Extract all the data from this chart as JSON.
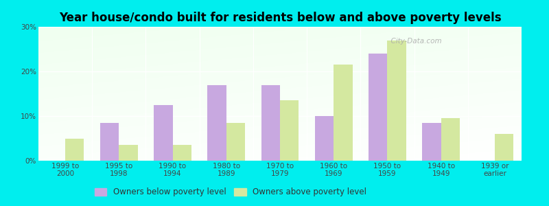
{
  "title": "Year house/condo built for residents below and above poverty levels",
  "categories": [
    "1999 to\n2000",
    "1995 to\n1998",
    "1990 to\n1994",
    "1980 to\n1989",
    "1970 to\n1979",
    "1960 to\n1969",
    "1950 to\n1959",
    "1940 to\n1949",
    "1939 or\nearlier"
  ],
  "below_poverty": [
    0,
    8.5,
    12.5,
    17.0,
    17.0,
    10.0,
    24.0,
    8.5,
    0
  ],
  "above_poverty": [
    5.0,
    3.5,
    3.5,
    8.5,
    13.5,
    21.5,
    27.0,
    9.5,
    6.0
  ],
  "below_color": "#c8a8e0",
  "above_color": "#d4e8a0",
  "ylim": [
    0,
    30
  ],
  "yticks": [
    0,
    10,
    20,
    30
  ],
  "ytick_labels": [
    "0%",
    "10%",
    "20%",
    "30%"
  ],
  "bar_width": 0.35,
  "outer_bg": "#00eeee",
  "legend_below_label": "Owners below poverty level",
  "legend_above_label": "Owners above poverty level",
  "title_fontsize": 12,
  "tick_fontsize": 7.5,
  "legend_fontsize": 8.5,
  "watermark": "  City-Data.com"
}
